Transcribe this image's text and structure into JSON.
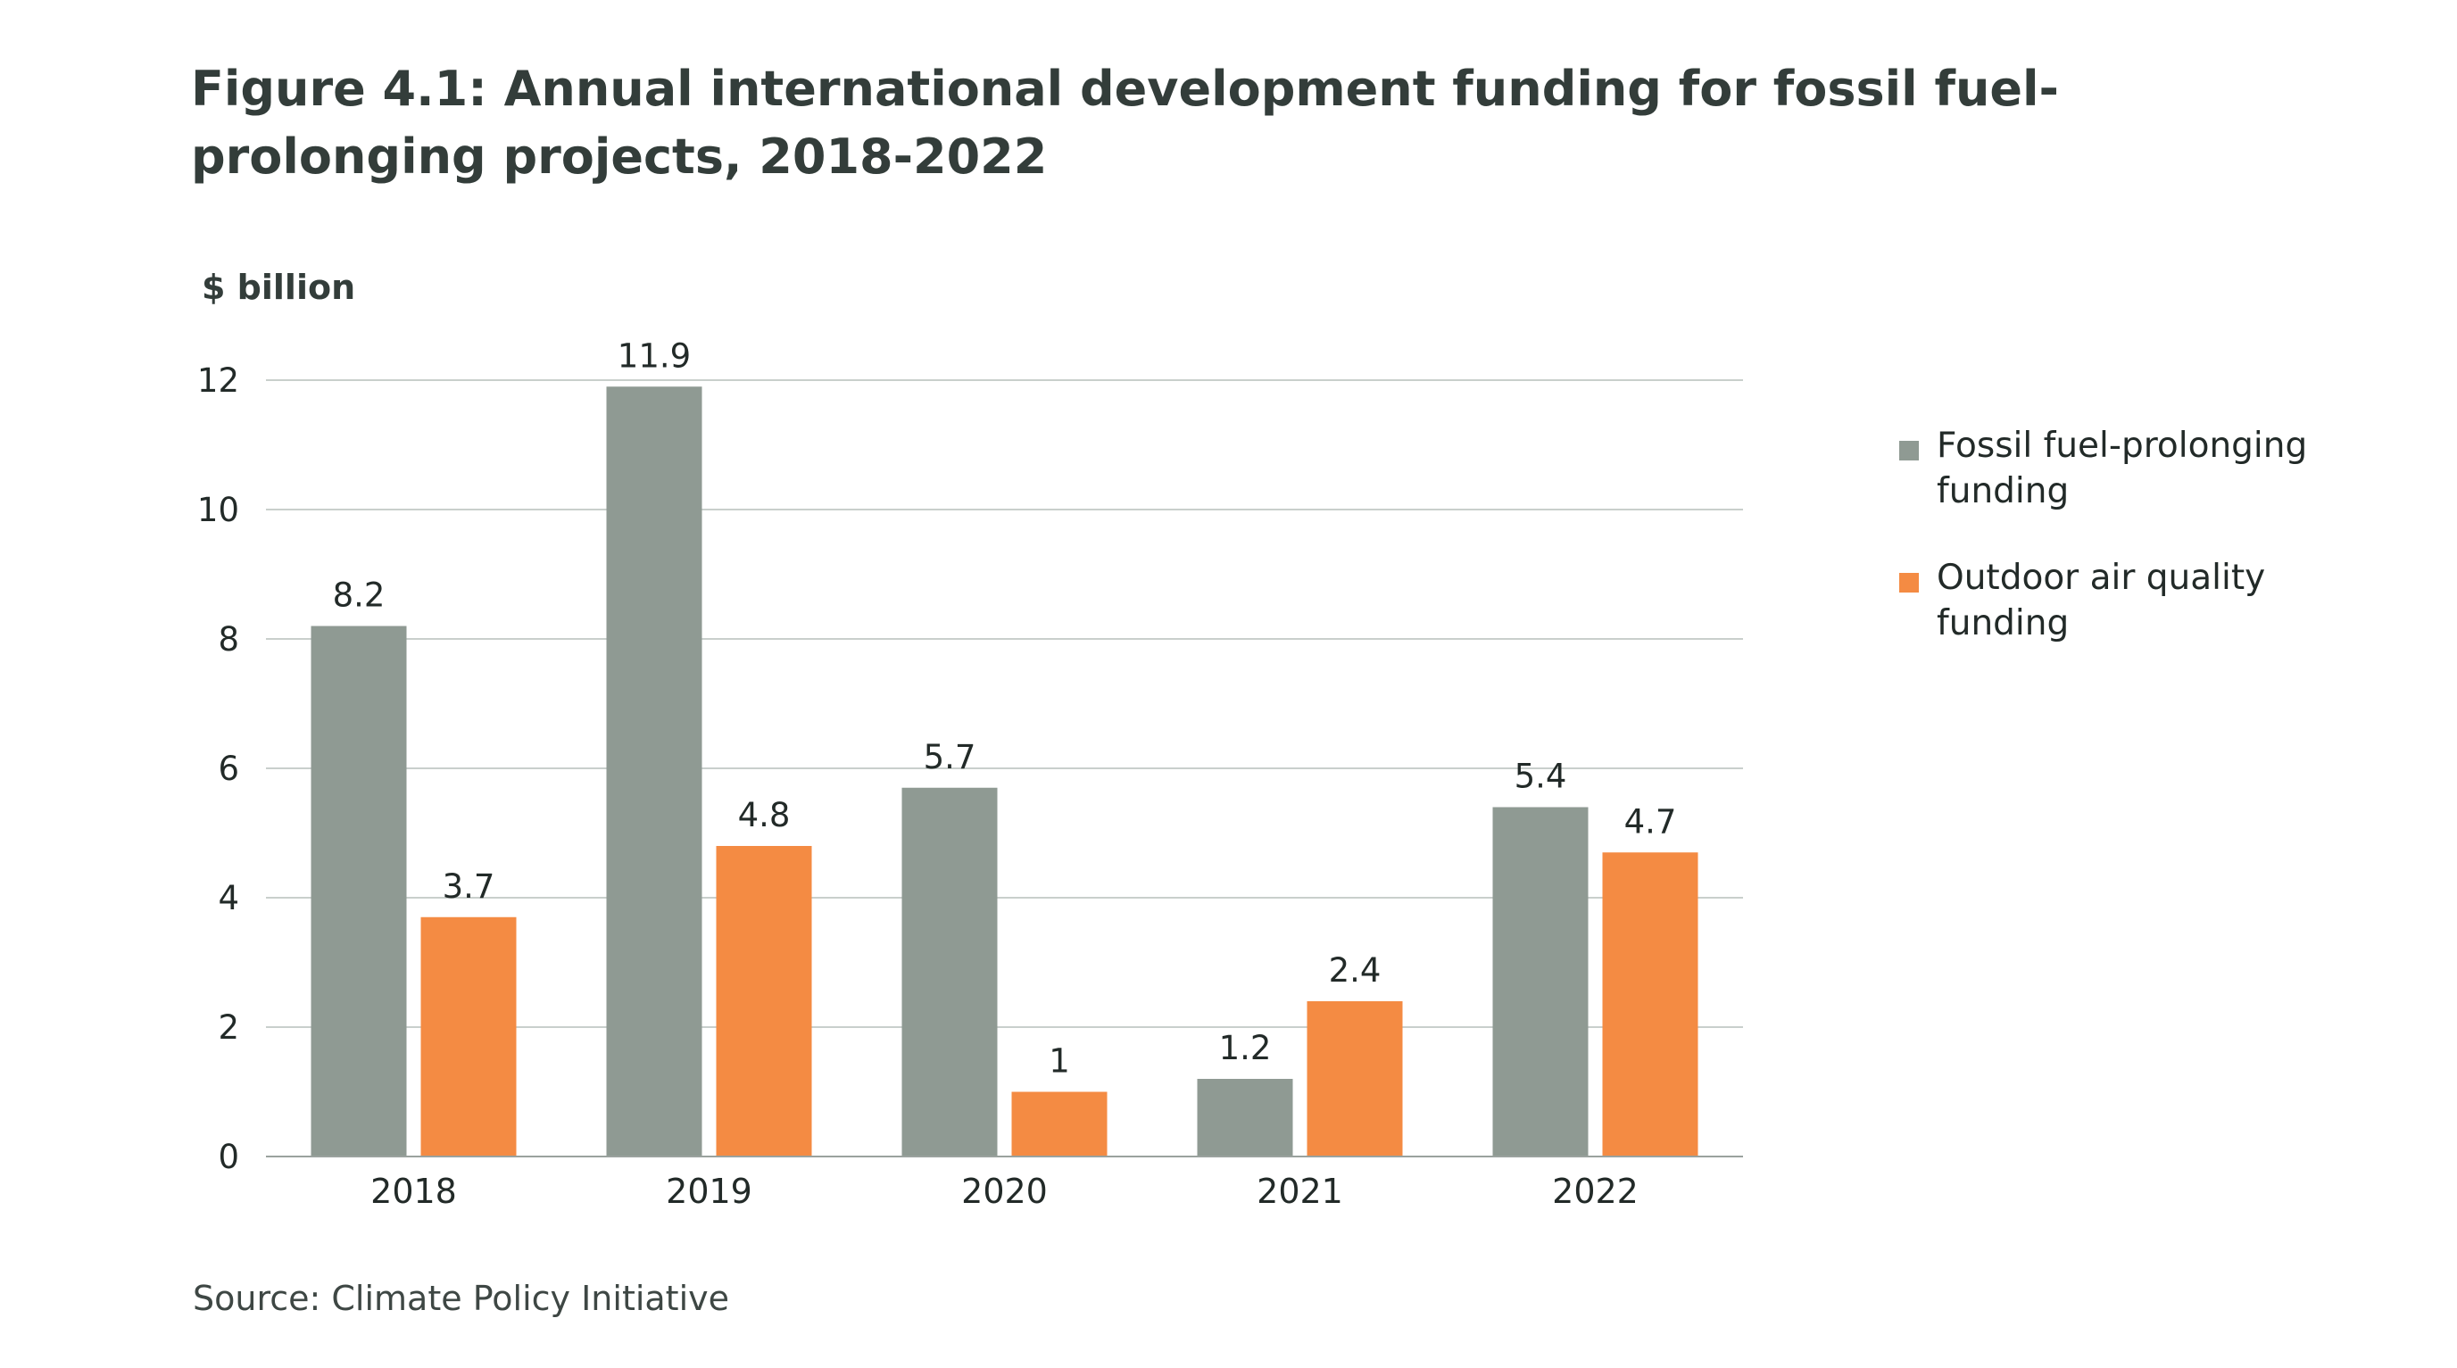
{
  "figure": {
    "title": "Figure 4.1: Annual international development funding for fossil fuel-prolonging projects, 2018-2022",
    "source": "Source: Climate Policy Initiative"
  },
  "chart_data": {
    "type": "bar",
    "ylabel": "$ billion",
    "xlabel": "",
    "ylim": [
      0,
      12
    ],
    "yticks": [
      0,
      2,
      4,
      6,
      8,
      10,
      12
    ],
    "grid": true,
    "legend_position": "right",
    "categories": [
      "2018",
      "2019",
      "2020",
      "2021",
      "2022"
    ],
    "series": [
      {
        "name": "Fossil fuel-prolonging funding",
        "color": "#8f9a93",
        "values": [
          8.2,
          11.9,
          5.7,
          1.2,
          5.4
        ],
        "labels": [
          "8.2",
          "11.9",
          "5.7",
          "1.2",
          "5.4"
        ]
      },
      {
        "name": "Outdoor air quality funding",
        "color": "#f48b43",
        "values": [
          3.7,
          4.8,
          1,
          2.4,
          4.7
        ],
        "labels": [
          "3.7",
          "4.8",
          "1",
          "2.4",
          "4.7"
        ]
      }
    ]
  }
}
